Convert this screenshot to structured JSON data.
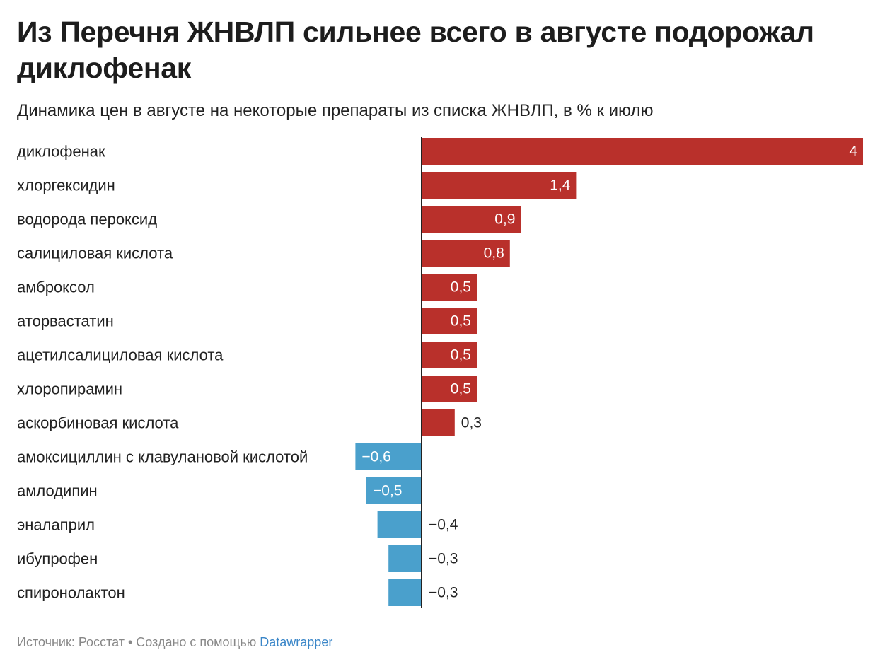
{
  "title": "Из Перечня ЖНВЛП сильнее всего в августе подорожал диклофенак",
  "subtitle": "Динамика цен в августе на некоторые препараты из списка ЖНВЛП, в % к июлю",
  "footer": {
    "source": "Источник: Росстат • Создано с помощью",
    "tool": "Datawrapper"
  },
  "colors": {
    "positive": "#b9302b",
    "negative": "#4aa0cc",
    "axis": "#222222"
  },
  "chart_data": {
    "type": "bar",
    "orientation": "horizontal",
    "categories": [
      "диклофенак",
      "хлоргексидин",
      "водорода пероксид",
      "салициловая кислота",
      "амброксол",
      "аторвастатин",
      "ацетилсалициловая кислота",
      "хлоропирамин",
      "аскорбиновая кислота",
      "амоксициллин с клавулановой кислотой",
      "амлодипин",
      "эналаприл",
      "ибупрофен",
      "спиронолактон"
    ],
    "values": [
      4,
      1.4,
      0.9,
      0.8,
      0.5,
      0.5,
      0.5,
      0.5,
      0.3,
      -0.6,
      -0.5,
      -0.4,
      -0.3,
      -0.3
    ],
    "value_labels": [
      "4",
      "1,4",
      "0,9",
      "0,8",
      "0,5",
      "0,5",
      "0,5",
      "0,5",
      "0,3",
      "−0,6",
      "−0,5",
      "−0,4",
      "−0,3",
      "−0,3"
    ],
    "title": "Из Перечня ЖНВЛП сильнее всего в августе подорожал диклофенак",
    "subtitle": "Динамика цен в августе на некоторые препараты из списка ЖНВЛП, в % к июлю",
    "xlim": [
      -0.6,
      4
    ],
    "grid": false,
    "legend": "none"
  }
}
